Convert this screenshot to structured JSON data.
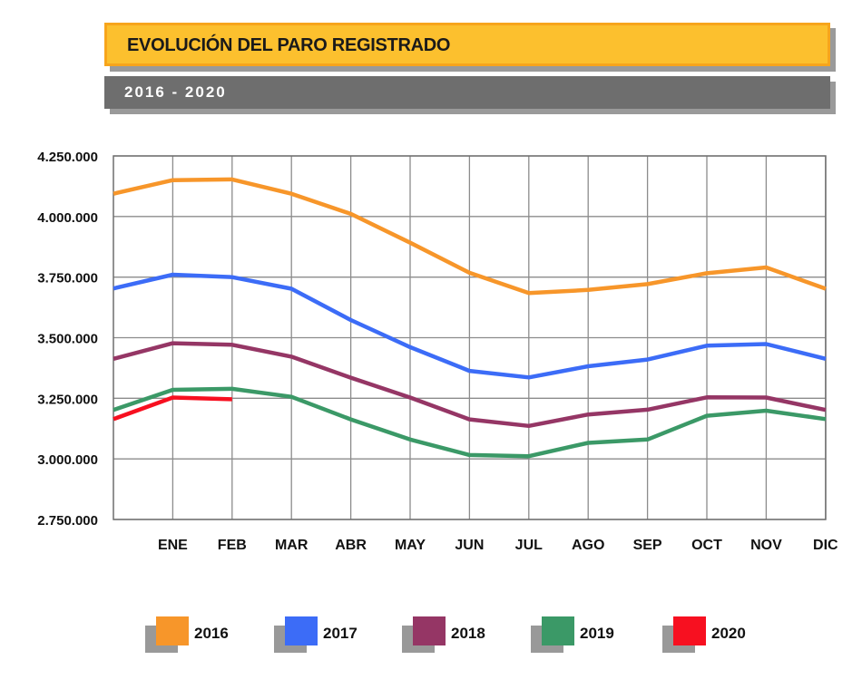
{
  "header": {
    "title": "EVOLUCIÓN DEL PARO REGISTRADO",
    "subtitle": "2016 - 2020"
  },
  "chart_data": {
    "type": "line",
    "title": "EVOLUCIÓN DEL PARO REGISTRADO",
    "subtitle": "2016 - 2020",
    "categories": [
      "ENE",
      "FEB",
      "MAR",
      "ABR",
      "MAY",
      "JUN",
      "JUL",
      "AGO",
      "SEP",
      "OCT",
      "NOV",
      "DIC"
    ],
    "y_tick_labels": [
      "4.250.000",
      "4.000.000",
      "3.750.000",
      "3.500.000",
      "3.250.000",
      "3.000.000",
      "2.750.000"
    ],
    "y_ticks": [
      4250000,
      4000000,
      3750000,
      3500000,
      3250000,
      3000000,
      2750000
    ],
    "ylim": [
      2750000,
      4250000
    ],
    "grid": true,
    "legend_position": "bottom",
    "x_start_value": {
      "2016": 4094000,
      "2017": 3703000,
      "2018": 3413000,
      "2019": 3202000,
      "2020": 3164000
    },
    "series": [
      {
        "name": "2016",
        "color": "#f7962a",
        "values": [
          4150000,
          4153000,
          4094000,
          4011000,
          3892000,
          3768000,
          3684000,
          3697000,
          3721000,
          3766000,
          3790000,
          3702000
        ]
      },
      {
        "name": "2017",
        "color": "#3c6cf7",
        "values": [
          3760000,
          3750000,
          3702000,
          3573000,
          3461000,
          3363000,
          3336000,
          3382000,
          3410000,
          3467000,
          3474000,
          3413000
        ]
      },
      {
        "name": "2018",
        "color": "#953665",
        "values": [
          3477000,
          3471000,
          3422000,
          3335000,
          3253000,
          3163000,
          3136000,
          3183000,
          3203000,
          3254000,
          3253000,
          3202000
        ]
      },
      {
        "name": "2019",
        "color": "#3b9967",
        "values": [
          3285000,
          3289000,
          3256000,
          3163000,
          3080000,
          3016000,
          3011000,
          3066000,
          3080000,
          3178000,
          3199000,
          3164000
        ]
      },
      {
        "name": "2020",
        "color": "#f71020",
        "values": [
          3253000,
          3246000,
          null,
          null,
          null,
          null,
          null,
          null,
          null,
          null,
          null,
          null
        ]
      }
    ]
  }
}
